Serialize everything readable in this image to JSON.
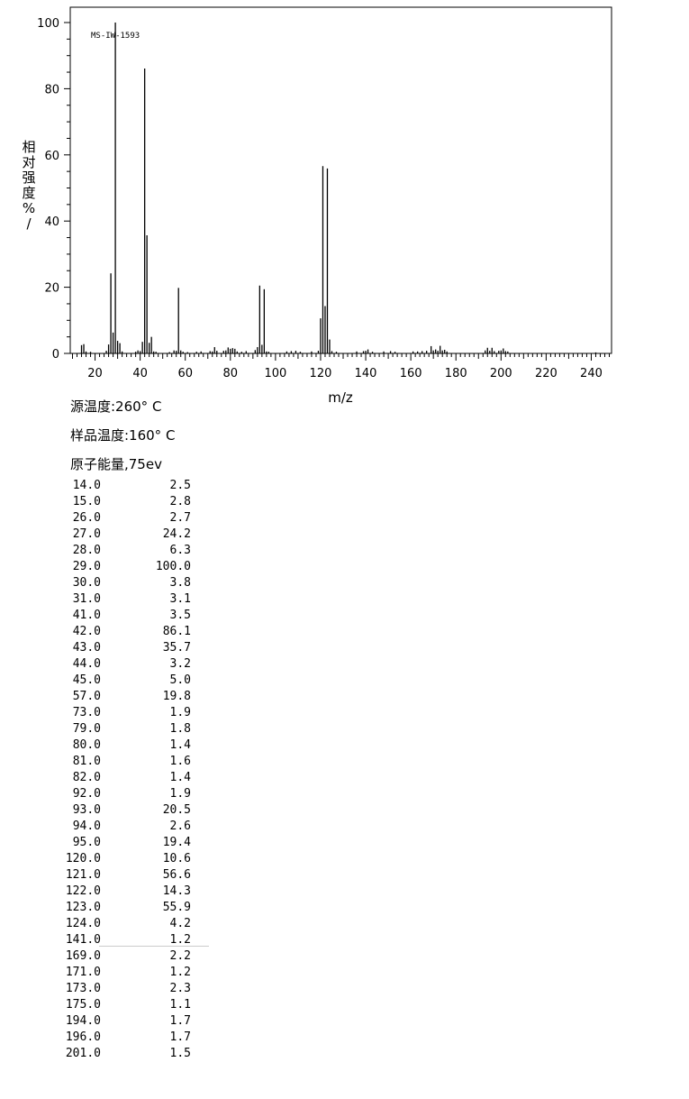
{
  "chart_data": {
    "type": "bar",
    "title": "",
    "id_label": "MS-IW-1593",
    "xlabel": "m/z",
    "ylabel": "相对强度%/",
    "xlim": [
      10,
      250
    ],
    "ylim": [
      0,
      100
    ],
    "x_ticks": [
      20,
      40,
      60,
      80,
      100,
      120,
      140,
      160,
      180,
      200,
      220,
      240
    ],
    "y_ticks": [
      0,
      20,
      40,
      60,
      80,
      100
    ],
    "grid": false,
    "peaks": [
      {
        "mz": 14.0,
        "intensity": 2.5
      },
      {
        "mz": 15.0,
        "intensity": 2.8
      },
      {
        "mz": 26.0,
        "intensity": 2.7
      },
      {
        "mz": 27.0,
        "intensity": 24.2
      },
      {
        "mz": 28.0,
        "intensity": 6.3
      },
      {
        "mz": 29.0,
        "intensity": 100.0
      },
      {
        "mz": 30.0,
        "intensity": 3.8
      },
      {
        "mz": 31.0,
        "intensity": 3.1
      },
      {
        "mz": 41.0,
        "intensity": 3.5
      },
      {
        "mz": 42.0,
        "intensity": 86.1
      },
      {
        "mz": 43.0,
        "intensity": 35.7
      },
      {
        "mz": 44.0,
        "intensity": 3.2
      },
      {
        "mz": 45.0,
        "intensity": 5.0
      },
      {
        "mz": 57.0,
        "intensity": 19.8
      },
      {
        "mz": 73.0,
        "intensity": 1.9
      },
      {
        "mz": 79.0,
        "intensity": 1.8
      },
      {
        "mz": 80.0,
        "intensity": 1.4
      },
      {
        "mz": 81.0,
        "intensity": 1.6
      },
      {
        "mz": 82.0,
        "intensity": 1.4
      },
      {
        "mz": 92.0,
        "intensity": 1.9
      },
      {
        "mz": 93.0,
        "intensity": 20.5
      },
      {
        "mz": 94.0,
        "intensity": 2.6
      },
      {
        "mz": 95.0,
        "intensity": 19.4
      },
      {
        "mz": 120.0,
        "intensity": 10.6
      },
      {
        "mz": 121.0,
        "intensity": 56.6
      },
      {
        "mz": 122.0,
        "intensity": 14.3
      },
      {
        "mz": 123.0,
        "intensity": 55.9
      },
      {
        "mz": 124.0,
        "intensity": 4.2
      },
      {
        "mz": 141.0,
        "intensity": 1.2
      },
      {
        "mz": 169.0,
        "intensity": 2.2
      },
      {
        "mz": 171.0,
        "intensity": 1.2
      },
      {
        "mz": 173.0,
        "intensity": 2.3
      },
      {
        "mz": 175.0,
        "intensity": 1.1
      },
      {
        "mz": 194.0,
        "intensity": 1.7
      },
      {
        "mz": 196.0,
        "intensity": 1.7
      },
      {
        "mz": 201.0,
        "intensity": 1.5
      }
    ],
    "minor_peaks": [
      {
        "mz": 16,
        "intensity": 0.6
      },
      {
        "mz": 18,
        "intensity": 0.5
      },
      {
        "mz": 25,
        "intensity": 0.8
      },
      {
        "mz": 32,
        "intensity": 0.6
      },
      {
        "mz": 38,
        "intensity": 0.5
      },
      {
        "mz": 39,
        "intensity": 0.9
      },
      {
        "mz": 40,
        "intensity": 0.7
      },
      {
        "mz": 46,
        "intensity": 0.6
      },
      {
        "mz": 47,
        "intensity": 0.5
      },
      {
        "mz": 53,
        "intensity": 0.4
      },
      {
        "mz": 55,
        "intensity": 0.9
      },
      {
        "mz": 56,
        "intensity": 0.8
      },
      {
        "mz": 58,
        "intensity": 0.9
      },
      {
        "mz": 59,
        "intensity": 0.5
      },
      {
        "mz": 61,
        "intensity": 0.4
      },
      {
        "mz": 65,
        "intensity": 0.5
      },
      {
        "mz": 67,
        "intensity": 0.6
      },
      {
        "mz": 71,
        "intensity": 0.7
      },
      {
        "mz": 72,
        "intensity": 0.6
      },
      {
        "mz": 74,
        "intensity": 0.8
      },
      {
        "mz": 77,
        "intensity": 0.8
      },
      {
        "mz": 78,
        "intensity": 0.9
      },
      {
        "mz": 83,
        "intensity": 0.6
      },
      {
        "mz": 85,
        "intensity": 0.5
      },
      {
        "mz": 87,
        "intensity": 0.7
      },
      {
        "mz": 91,
        "intensity": 1.0
      },
      {
        "mz": 96,
        "intensity": 0.6
      },
      {
        "mz": 97,
        "intensity": 0.5
      },
      {
        "mz": 105,
        "intensity": 0.6
      },
      {
        "mz": 107,
        "intensity": 0.7
      },
      {
        "mz": 109,
        "intensity": 0.8
      },
      {
        "mz": 111,
        "intensity": 0.5
      },
      {
        "mz": 116,
        "intensity": 0.6
      },
      {
        "mz": 119,
        "intensity": 0.8
      },
      {
        "mz": 125,
        "intensity": 0.7
      },
      {
        "mz": 127,
        "intensity": 0.5
      },
      {
        "mz": 136,
        "intensity": 0.6
      },
      {
        "mz": 139,
        "intensity": 0.7
      },
      {
        "mz": 140,
        "intensity": 0.8
      },
      {
        "mz": 143,
        "intensity": 0.5
      },
      {
        "mz": 148,
        "intensity": 0.6
      },
      {
        "mz": 151,
        "intensity": 0.7
      },
      {
        "mz": 153,
        "intensity": 0.5
      },
      {
        "mz": 161,
        "intensity": 0.6
      },
      {
        "mz": 163,
        "intensity": 0.6
      },
      {
        "mz": 165,
        "intensity": 0.7
      },
      {
        "mz": 167,
        "intensity": 0.8
      },
      {
        "mz": 170,
        "intensity": 0.9
      },
      {
        "mz": 172,
        "intensity": 0.8
      },
      {
        "mz": 174,
        "intensity": 0.9
      },
      {
        "mz": 176,
        "intensity": 0.6
      },
      {
        "mz": 193,
        "intensity": 0.9
      },
      {
        "mz": 195,
        "intensity": 0.8
      },
      {
        "mz": 197,
        "intensity": 0.7
      },
      {
        "mz": 199,
        "intensity": 0.8
      },
      {
        "mz": 200,
        "intensity": 0.9
      },
      {
        "mz": 202,
        "intensity": 0.7
      },
      {
        "mz": 203,
        "intensity": 0.6
      },
      {
        "mz": 242,
        "intensity": 0.3
      }
    ]
  },
  "conditions": {
    "source_temp": "源温度:260° C",
    "sample_temp": "样品温度:160° C",
    "electron_energy": "原子能量,75ev"
  },
  "peak_table": [
    {
      "mz": "14.0",
      "intensity": "2.5"
    },
    {
      "mz": "15.0",
      "intensity": "2.8"
    },
    {
      "mz": "26.0",
      "intensity": "2.7"
    },
    {
      "mz": "27.0",
      "intensity": "24.2"
    },
    {
      "mz": "28.0",
      "intensity": "6.3"
    },
    {
      "mz": "29.0",
      "intensity": "100.0"
    },
    {
      "mz": "30.0",
      "intensity": "3.8"
    },
    {
      "mz": "31.0",
      "intensity": "3.1"
    },
    {
      "mz": "41.0",
      "intensity": "3.5"
    },
    {
      "mz": "42.0",
      "intensity": "86.1"
    },
    {
      "mz": "43.0",
      "intensity": "35.7"
    },
    {
      "mz": "44.0",
      "intensity": "3.2"
    },
    {
      "mz": "45.0",
      "intensity": "5.0"
    },
    {
      "mz": "57.0",
      "intensity": "19.8"
    },
    {
      "mz": "73.0",
      "intensity": "1.9"
    },
    {
      "mz": "79.0",
      "intensity": "1.8"
    },
    {
      "mz": "80.0",
      "intensity": "1.4"
    },
    {
      "mz": "81.0",
      "intensity": "1.6"
    },
    {
      "mz": "82.0",
      "intensity": "1.4"
    },
    {
      "mz": "92.0",
      "intensity": "1.9"
    },
    {
      "mz": "93.0",
      "intensity": "20.5"
    },
    {
      "mz": "94.0",
      "intensity": "2.6"
    },
    {
      "mz": "95.0",
      "intensity": "19.4"
    },
    {
      "mz": "120.0",
      "intensity": "10.6"
    },
    {
      "mz": "121.0",
      "intensity": "56.6"
    },
    {
      "mz": "122.0",
      "intensity": "14.3"
    },
    {
      "mz": "123.0",
      "intensity": "55.9"
    },
    {
      "mz": "124.0",
      "intensity": "4.2"
    },
    {
      "mz": "141.0",
      "intensity": "1.2"
    },
    {
      "mz": "169.0",
      "intensity": "2.2"
    },
    {
      "mz": "171.0",
      "intensity": "1.2"
    },
    {
      "mz": "173.0",
      "intensity": "2.3"
    },
    {
      "mz": "175.0",
      "intensity": "1.1"
    },
    {
      "mz": "194.0",
      "intensity": "1.7"
    },
    {
      "mz": "196.0",
      "intensity": "1.7"
    },
    {
      "mz": "201.0",
      "intensity": "1.5"
    }
  ]
}
